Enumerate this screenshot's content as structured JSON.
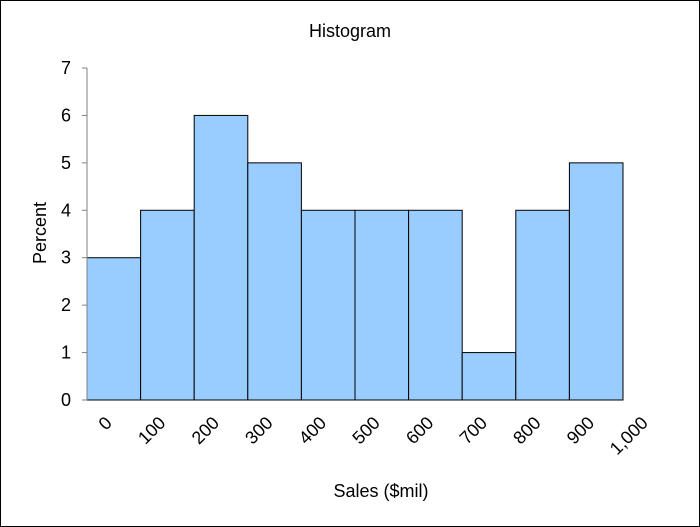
{
  "chart_data": {
    "type": "bar",
    "title": "Histogram",
    "xlabel": "Sales ($mil)",
    "ylabel": "Percent",
    "bin_edges": [
      "0",
      "100",
      "200",
      "300",
      "400",
      "500",
      "600",
      "700",
      "800",
      "900",
      "1,000"
    ],
    "values": [
      3,
      4,
      6,
      5,
      4,
      4,
      4,
      1,
      4,
      5
    ],
    "yticks": [
      "0",
      "1",
      "2",
      "3",
      "4",
      "5",
      "6",
      "7"
    ],
    "ylim": [
      0,
      7
    ],
    "grid": false,
    "legend": "none",
    "bar_color": "#99ccff",
    "bar_edge_color": "#000000"
  }
}
